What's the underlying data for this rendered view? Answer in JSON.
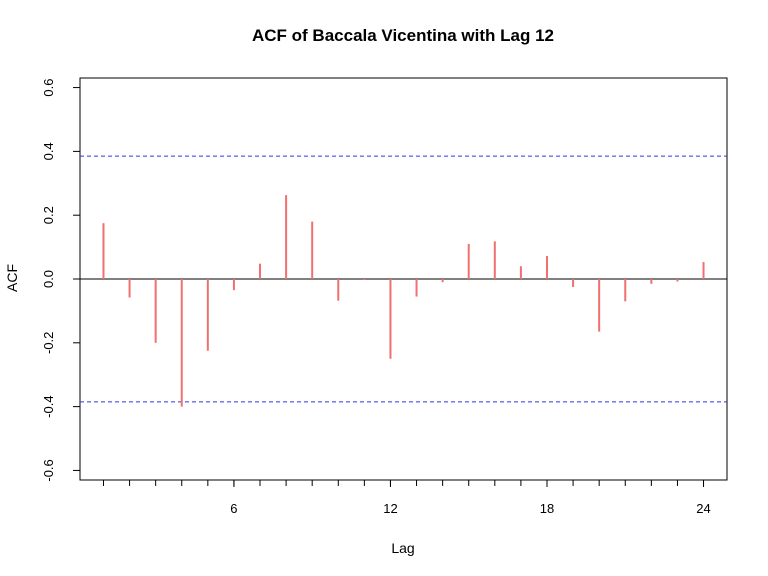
{
  "chart_data": {
    "type": "bar",
    "title": "ACF of Baccala Vicentina with Lag 12",
    "xlabel": "Lag",
    "ylabel": "ACF",
    "xlim": [
      0.1,
      24.9
    ],
    "ylim": [
      -0.63,
      0.63
    ],
    "x_ticks": [
      6,
      12,
      18,
      24
    ],
    "x_minor_ticks": [
      1,
      2,
      3,
      4,
      5,
      6,
      7,
      8,
      9,
      10,
      11,
      12,
      13,
      14,
      15,
      16,
      17,
      18,
      19,
      20,
      21,
      22,
      23,
      24
    ],
    "y_ticks": [
      -0.6,
      -0.4,
      -0.2,
      0.0,
      0.2,
      0.4,
      0.6
    ],
    "y_tick_labels": [
      "-0.6",
      "-0.4",
      "-0.2",
      "0.0",
      "0.2",
      "0.4",
      "0.6"
    ],
    "lags": [
      1,
      2,
      3,
      4,
      5,
      6,
      7,
      8,
      9,
      10,
      11,
      12,
      13,
      14,
      15,
      16,
      17,
      18,
      19,
      20,
      21,
      22,
      23,
      24
    ],
    "values": [
      0.175,
      -0.058,
      -0.2,
      -0.4,
      -0.225,
      -0.035,
      0.048,
      0.263,
      0.18,
      -0.068,
      -0.003,
      -0.25,
      -0.055,
      -0.01,
      0.11,
      0.118,
      0.04,
      0.072,
      -0.025,
      -0.165,
      -0.07,
      -0.015,
      -0.008,
      0.053
    ],
    "confidence_bound": 0.385,
    "colors": {
      "bars": "#f07070",
      "confidence": "#3333ee",
      "axis": "#000000"
    },
    "grid": false
  }
}
